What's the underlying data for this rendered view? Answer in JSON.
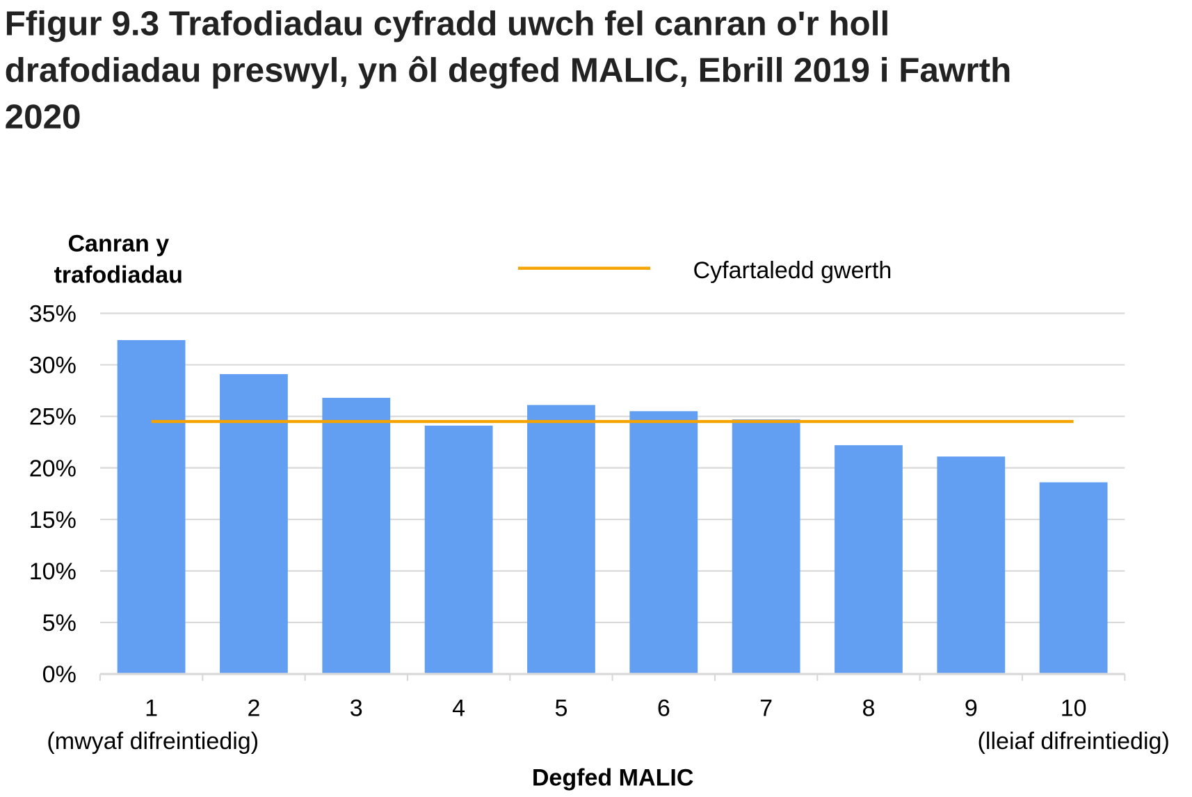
{
  "title_lines": [
    "Ffigur 9.3  Trafodiadau cyfradd uwch fel canran o'r holl",
    "drafodiadau preswyl, yn ôl degfed MALIC, Ebrill 2019 i Fawrth",
    "2020"
  ],
  "chart_data": {
    "type": "bar",
    "title": "Ffigur 9.3  Trafodiadau cyfradd uwch fel canran o'r holl drafodiadau preswyl, yn ôl degfed MALIC, Ebrill 2019 i Fawrth 2020",
    "ylabel_lines": [
      "Canran y",
      "trafodiadau"
    ],
    "xlabel": "Degfed MALIC",
    "categories": [
      "1",
      "2",
      "3",
      "4",
      "5",
      "6",
      "7",
      "8",
      "9",
      "10"
    ],
    "category_sublabels": {
      "first": "(mwyaf difreintiedig)",
      "last": "(lleiaf difreintiedig)"
    },
    "values": [
      32.4,
      29.1,
      26.8,
      24.1,
      26.1,
      25.5,
      24.7,
      22.2,
      21.1,
      18.6
    ],
    "average": {
      "name": "Cyfartaledd  gwerth",
      "value": 24.5,
      "color": "#F5A300"
    },
    "bar_color": "#629EF1",
    "ylim": [
      0,
      35
    ],
    "yticks": [
      0,
      5,
      10,
      15,
      20,
      25,
      30,
      35
    ],
    "ytick_labels": [
      "0%",
      "5%",
      "10%",
      "15%",
      "20%",
      "25%",
      "30%",
      "35%"
    ],
    "grid": true,
    "legend_position": "top"
  }
}
